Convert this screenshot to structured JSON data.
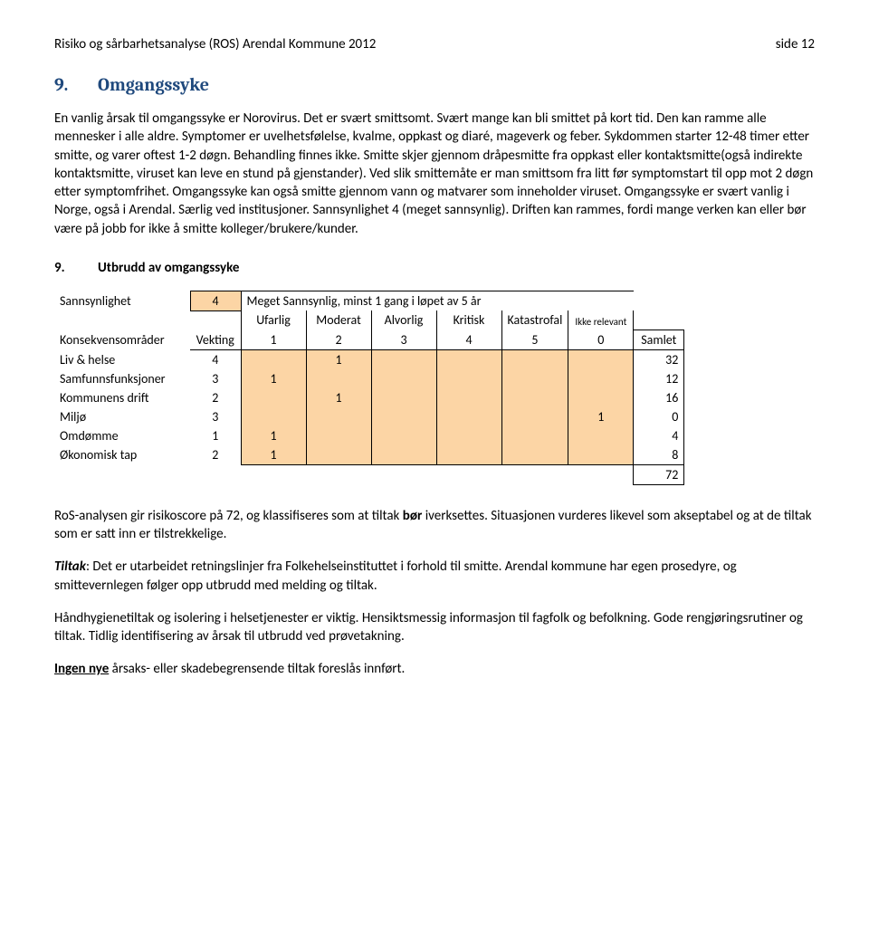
{
  "header": {
    "left": "Risiko og sårbarhetsanalyse (ROS) Arendal Kommune 2012",
    "right": "side 12"
  },
  "section": {
    "number": "9.",
    "title": "Omgangssyke",
    "title_color": "#1f497d",
    "body": "En vanlig årsak til omgangssyke er Norovirus. Det er svært smittsomt. Svært mange kan bli smittet på kort tid. Den kan ramme alle mennesker i alle aldre. Symptomer er uvelhetsfølelse, kvalme, oppkast og diaré, mageverk og feber. Sykdommen starter 12-48 timer etter smitte, og varer oftest 1-2 døgn. Behandling finnes ikke. Smitte skjer gjennom dråpesmitte fra oppkast eller kontaktsmitte(også indirekte kontaktsmitte, viruset kan leve en stund på gjenstander). Ved slik smittemåte er man smittsom fra litt før symptomstart til opp mot 2 døgn etter symptomfrihet. Omgangssyke kan også smitte gjennom vann og matvarer som inneholder viruset. Omgangssyke er svært vanlig i Norge, også i Arendal. Særlig ved institusjoner. Sannsynlighet 4 (meget sannsynlig). Driften kan rammes, fordi mange verken kan eller bør være på jobb for ikke å smitte kolleger/brukere/kunder."
  },
  "subsection": {
    "number": "9.",
    "title": "Utbrudd av omgangssyke"
  },
  "table": {
    "highlight_color": "#fcd5a5",
    "sannsynlighet_label": "Sannsynlighet",
    "sannsynlighet_value": "4",
    "sannsynlighet_desc": "Meget Sannsynlig, minst 1 gang i løpet av 5 år",
    "severity_headers": [
      "Ufarlig",
      "Moderat",
      "Alvorlig",
      "Kritisk",
      "Katastrofal",
      "Ikke relevant"
    ],
    "row2_label": "Konsekvensområder",
    "row2_vekting": "Vekting",
    "severity_scores": [
      "1",
      "2",
      "3",
      "4",
      "5",
      "0"
    ],
    "samlet_label": "Samlet",
    "rows": [
      {
        "label": "Liv & helse",
        "vekt": "4",
        "cells": [
          "",
          "1",
          "",
          "",
          "",
          ""
        ],
        "samlet": "32"
      },
      {
        "label": "Samfunnsfunksjoner",
        "vekt": "3",
        "cells": [
          "1",
          "",
          "",
          "",
          "",
          ""
        ],
        "samlet": "12"
      },
      {
        "label": "Kommunens drift",
        "vekt": "2",
        "cells": [
          "",
          "1",
          "",
          "",
          "",
          ""
        ],
        "samlet": "16"
      },
      {
        "label": "Miljø",
        "vekt": "3",
        "cells": [
          "",
          "",
          "",
          "",
          "",
          "1"
        ],
        "samlet": "0"
      },
      {
        "label": "Omdømme",
        "vekt": "1",
        "cells": [
          "1",
          "",
          "",
          "",
          "",
          ""
        ],
        "samlet": "4"
      },
      {
        "label": "Økonomisk tap",
        "vekt": "2",
        "cells": [
          "1",
          "",
          "",
          "",
          "",
          ""
        ],
        "samlet": "8"
      }
    ],
    "total": "72"
  },
  "conclusion": {
    "p1_a": "RoS-analysen gir risikoscore på 72, og klassifiseres som at tiltak ",
    "p1_bold": "bør",
    "p1_b": " iverksettes. Situasjonen vurderes likevel som akseptabel og at de tiltak som er satt inn er tilstrekkelige.",
    "p2_label": "Tiltak",
    "p2_text": ": Det er utarbeidet retningslinjer fra Folkehelseinstituttet i forhold til smitte. Arendal kommune har egen prosedyre, og smittevernlegen følger opp utbrudd med melding og tiltak.",
    "p3": "Håndhygienetiltak og isolering i helsetjenester er viktig. Hensiktsmessig informasjon til fagfolk og befolkning. Gode rengjøringsrutiner og tiltak. Tidlig identifisering av årsak til utbrudd ved prøvetakning.",
    "p4_underline": "Ingen nye",
    "p4_rest": " årsaks- eller skadebegrensende tiltak foreslås innført."
  }
}
